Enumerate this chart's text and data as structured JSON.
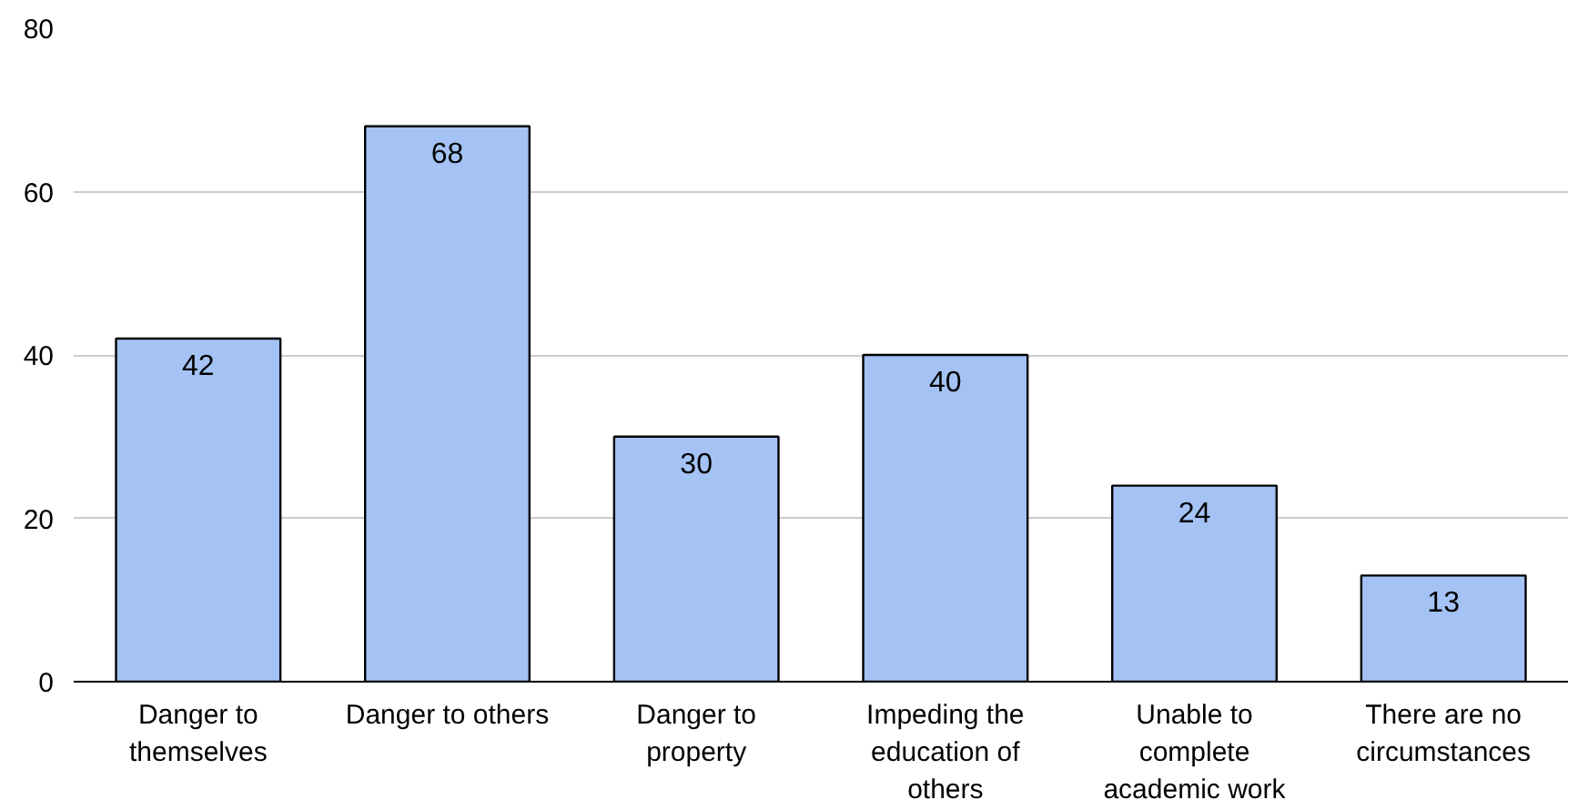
{
  "chart_data": {
    "type": "bar",
    "categories": [
      "Danger to themselves",
      "Danger to others",
      "Danger to property",
      "Impeding the education of others",
      "Unable to complete academic work",
      "There are no circumstances"
    ],
    "values": [
      42,
      68,
      30,
      40,
      24,
      13
    ],
    "color": "#a4c2f4",
    "ylim": [
      0,
      80
    ],
    "yticks": [
      0,
      20,
      40,
      60,
      80
    ],
    "grid": "y",
    "data_labels": true
  }
}
